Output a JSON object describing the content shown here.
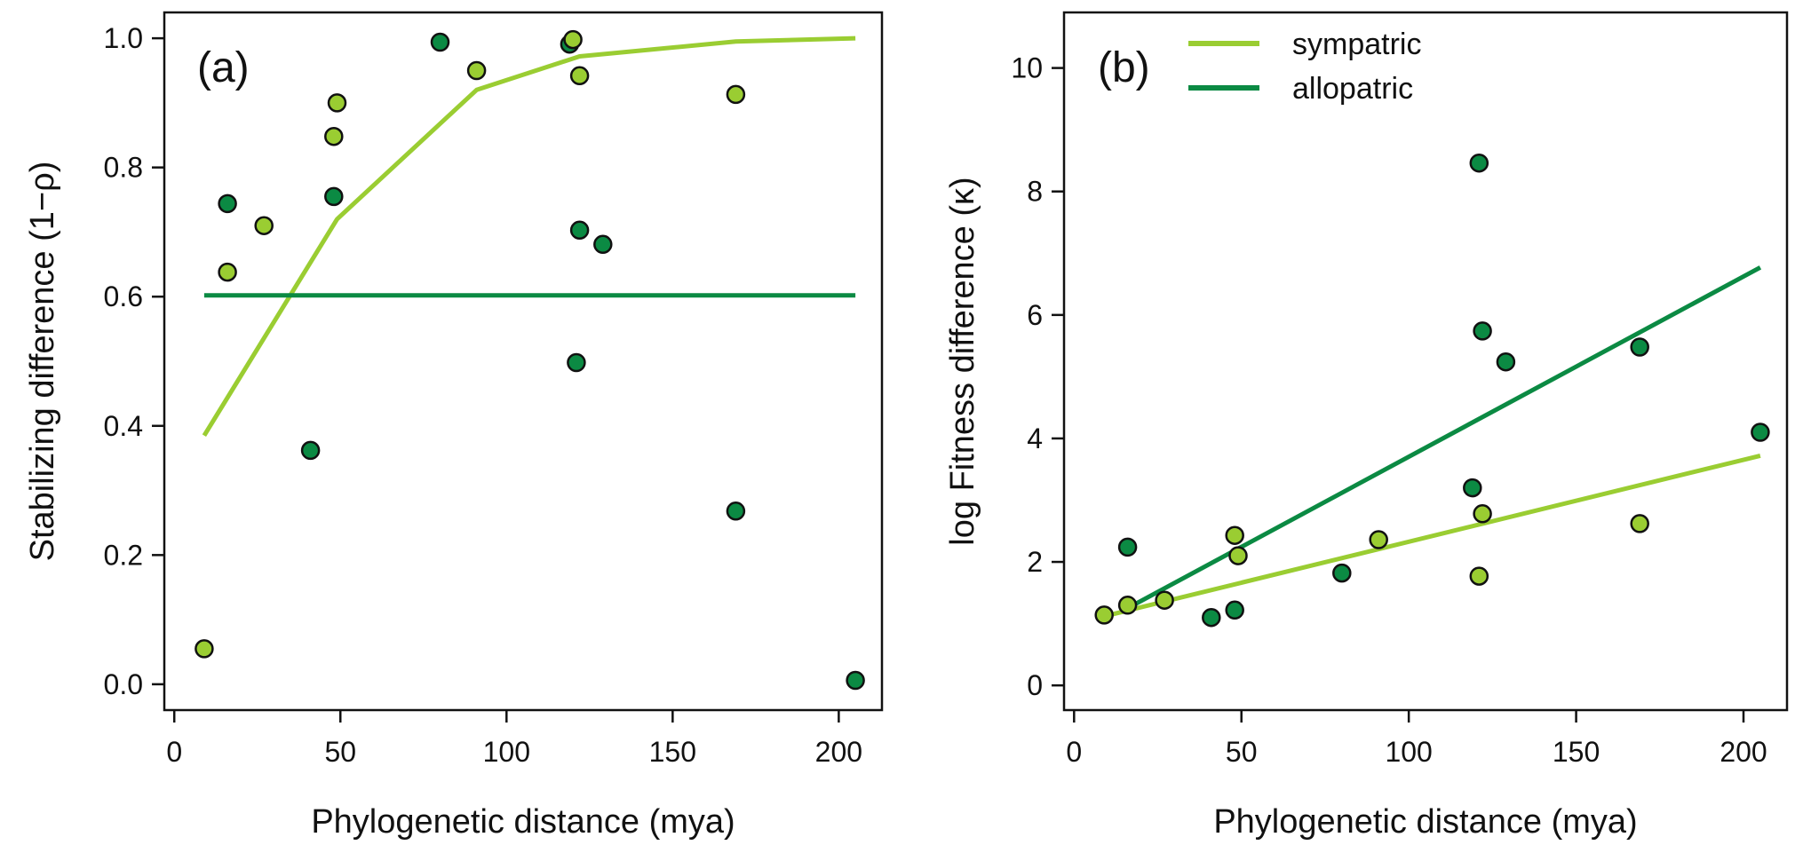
{
  "colors": {
    "sympatric": "#9acd32",
    "allopatric": "#0b8a43",
    "point_edge": "#111111"
  },
  "chart_data": [
    {
      "id": "a",
      "type": "scatter",
      "panel_label": "(a)",
      "xlabel": "Phylogenetic distance (mya)",
      "ylabel": "Stabilizing difference (1−ρ)",
      "xlim": [
        -3,
        213
      ],
      "ylim": [
        -0.04,
        1.04
      ],
      "xticks": [
        0,
        50,
        100,
        150,
        200
      ],
      "yticks": [
        0.0,
        0.2,
        0.4,
        0.6,
        0.8,
        1.0
      ],
      "ytick_labels": [
        "0.0",
        "0.2",
        "0.4",
        "0.6",
        "0.8",
        "1.0"
      ],
      "grid": false,
      "series": [
        {
          "name": "sympatric",
          "color_key": "sympatric",
          "points": [
            [
              9,
              0.055
            ],
            [
              16,
              0.638
            ],
            [
              27,
              0.71
            ],
            [
              48,
              0.848
            ],
            [
              49,
              0.9
            ],
            [
              91,
              0.95
            ],
            [
              120,
              0.998
            ],
            [
              122,
              0.942
            ],
            [
              169,
              0.913
            ]
          ],
          "fit": [
            [
              9,
              0.385
            ],
            [
              49,
              0.72
            ],
            [
              91,
              0.92
            ],
            [
              122,
              0.972
            ],
            [
              169,
              0.995
            ],
            [
              205,
              1.0
            ]
          ]
        },
        {
          "name": "allopatric",
          "color_key": "allopatric",
          "points": [
            [
              16,
              0.744
            ],
            [
              41,
              0.362
            ],
            [
              48,
              0.755
            ],
            [
              80,
              0.994
            ],
            [
              119,
              0.991
            ],
            [
              121,
              0.498
            ],
            [
              122,
              0.703
            ],
            [
              129,
              0.681
            ],
            [
              169,
              0.268
            ],
            [
              205,
              0.006
            ]
          ],
          "fit": [
            [
              9,
              0.602
            ],
            [
              205,
              0.602
            ]
          ]
        }
      ]
    },
    {
      "id": "b",
      "type": "scatter",
      "panel_label": "(b)",
      "xlabel": "Phylogenetic distance (mya)",
      "ylabel": "log Fitness difference (κ)",
      "xlim": [
        -3,
        213
      ],
      "ylim": [
        -0.4,
        10.9
      ],
      "xticks": [
        0,
        50,
        100,
        150,
        200
      ],
      "yticks": [
        0,
        2,
        4,
        6,
        8,
        10
      ],
      "ytick_labels": [
        "0",
        "2",
        "4",
        "6",
        "8",
        "10"
      ],
      "grid": false,
      "legend": {
        "placement": "top-left",
        "entries": [
          "sympatric",
          "allopatric"
        ]
      },
      "series": [
        {
          "name": "sympatric",
          "color_key": "sympatric",
          "points": [
            [
              9,
              1.14
            ],
            [
              16,
              1.3
            ],
            [
              27,
              1.38
            ],
            [
              48,
              2.43
            ],
            [
              49,
              2.1
            ],
            [
              91,
              2.36
            ],
            [
              121,
              1.77
            ],
            [
              122,
              2.78
            ],
            [
              169,
              2.62
            ]
          ],
          "fit": [
            [
              9,
              1.12
            ],
            [
              205,
              3.72
            ]
          ]
        },
        {
          "name": "allopatric",
          "color_key": "allopatric",
          "points": [
            [
              16,
              2.24
            ],
            [
              41,
              1.1
            ],
            [
              48,
              1.22
            ],
            [
              80,
              1.82
            ],
            [
              119,
              3.2
            ],
            [
              121,
              8.46
            ],
            [
              122,
              5.74
            ],
            [
              129,
              5.24
            ],
            [
              169,
              5.48
            ],
            [
              205,
              4.1
            ]
          ],
          "fit": [
            [
              16,
              1.25
            ],
            [
              205,
              6.77
            ]
          ]
        }
      ]
    }
  ]
}
